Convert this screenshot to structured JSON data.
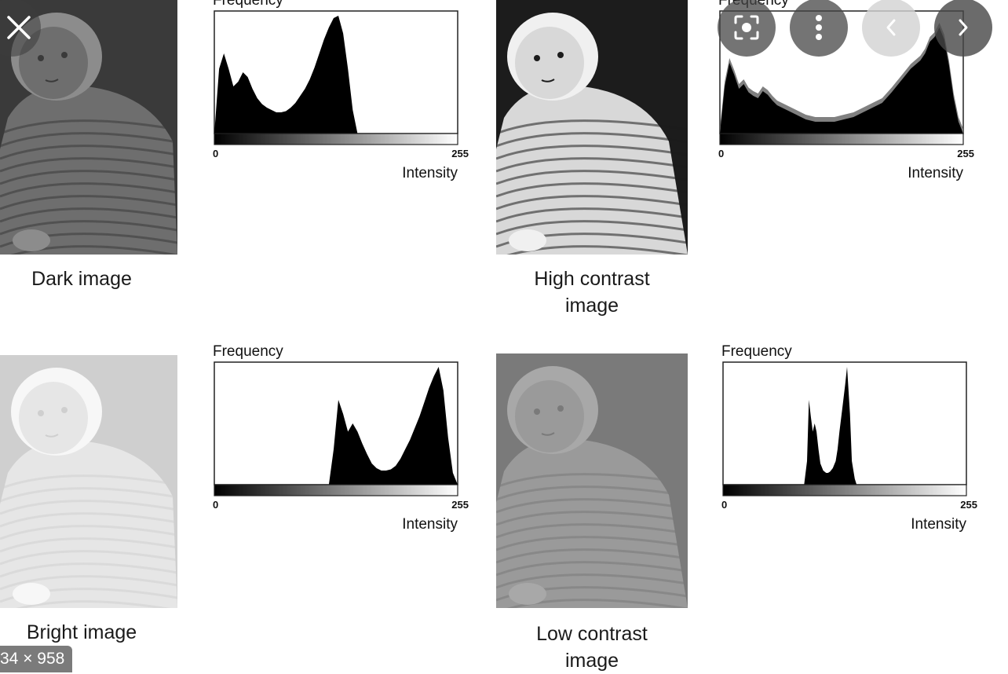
{
  "captions": {
    "dark": "Dark image",
    "high_line1": "High contrast",
    "high_line2": "image",
    "bright": "Bright image",
    "low_line1": "Low contrast",
    "low_line2": "image"
  },
  "hist_labels": {
    "frequency": "Frequency",
    "intensity": "Intensity",
    "zero": "0",
    "max": "255"
  },
  "viewer": {
    "close_icon": "close-icon",
    "lens_icon": "lens-icon",
    "more_icon": "more-vert-icon",
    "prev_icon": "chevron-left-icon",
    "next_icon": "chevron-right-icon",
    "dimensions": "34 × 958"
  },
  "photos": {
    "dark": {
      "bg": "#3a3a3a",
      "fg": "#6e6e6e",
      "light": "#8c8c8c"
    },
    "high": {
      "bg": "#1c1c1c",
      "fg": "#d8d8d8",
      "light": "#f0f0f0"
    },
    "bright": {
      "bg": "#cfcfcf",
      "fg": "#e6e6e6",
      "light": "#f7f7f7"
    },
    "low": {
      "bg": "#7a7a7a",
      "fg": "#9a9a9a",
      "light": "#a8a8a8"
    }
  },
  "chart_data": [
    {
      "type": "area",
      "name": "dark",
      "xlabel": "Intensity",
      "ylabel": "Frequency",
      "xlim": [
        0,
        255
      ],
      "x": [
        0,
        5,
        10,
        15,
        20,
        25,
        30,
        35,
        40,
        45,
        50,
        55,
        60,
        65,
        70,
        75,
        80,
        85,
        90,
        95,
        100,
        105,
        110,
        115,
        120,
        125,
        130,
        135,
        140,
        145,
        150,
        155,
        160,
        255
      ],
      "y": [
        0,
        55,
        68,
        55,
        40,
        44,
        52,
        48,
        38,
        30,
        25,
        22,
        20,
        18,
        18,
        19,
        22,
        26,
        32,
        38,
        46,
        56,
        68,
        80,
        90,
        98,
        100,
        85,
        55,
        20,
        0,
        0,
        0,
        0
      ]
    },
    {
      "type": "area",
      "name": "high",
      "xlabel": "Intensity",
      "ylabel": "Frequency",
      "xlim": [
        0,
        255
      ],
      "x": [
        0,
        5,
        10,
        15,
        20,
        25,
        30,
        35,
        40,
        45,
        50,
        55,
        60,
        70,
        80,
        90,
        100,
        110,
        120,
        130,
        140,
        150,
        160,
        170,
        180,
        190,
        200,
        210,
        215,
        220,
        225,
        230,
        235,
        240,
        245,
        250,
        255
      ],
      "y": [
        0,
        40,
        60,
        50,
        38,
        42,
        35,
        32,
        30,
        36,
        33,
        28,
        24,
        20,
        16,
        12,
        10,
        10,
        10,
        12,
        14,
        18,
        22,
        26,
        35,
        45,
        55,
        62,
        68,
        78,
        82,
        90,
        80,
        58,
        30,
        10,
        0
      ]
    },
    {
      "type": "area",
      "name": "bright",
      "xlabel": "Intensity",
      "ylabel": "Frequency",
      "xlim": [
        0,
        255
      ],
      "x": [
        0,
        120,
        125,
        130,
        135,
        140,
        145,
        150,
        155,
        160,
        165,
        170,
        175,
        180,
        185,
        190,
        195,
        200,
        205,
        210,
        215,
        220,
        225,
        230,
        235,
        240,
        245,
        250,
        255
      ],
      "y": [
        0,
        0,
        30,
        72,
        60,
        45,
        52,
        45,
        35,
        26,
        18,
        14,
        12,
        12,
        13,
        16,
        22,
        30,
        38,
        48,
        58,
        70,
        82,
        92,
        100,
        80,
        40,
        10,
        0
      ]
    },
    {
      "type": "area",
      "name": "low",
      "xlabel": "Intensity",
      "ylabel": "Frequency",
      "xlim": [
        0,
        255
      ],
      "x": [
        0,
        85,
        88,
        90,
        92,
        94,
        96,
        98,
        100,
        102,
        105,
        108,
        110,
        112,
        115,
        118,
        120,
        122,
        125,
        128,
        130,
        133,
        135,
        138,
        140,
        255
      ],
      "y": [
        0,
        0,
        20,
        72,
        58,
        45,
        52,
        45,
        30,
        18,
        12,
        10,
        10,
        11,
        14,
        20,
        30,
        45,
        65,
        85,
        100,
        60,
        20,
        5,
        0,
        0
      ]
    }
  ]
}
